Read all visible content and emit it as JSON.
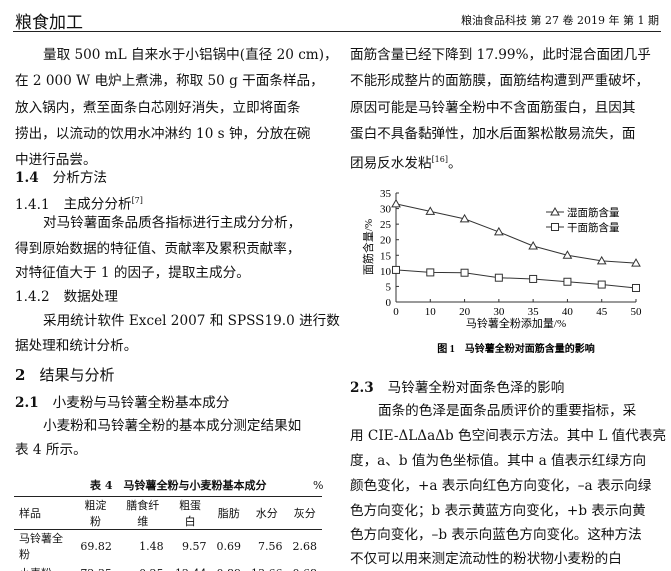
{
  "header": {
    "section": "粮食加工",
    "journal": "粮油食品科技 第 27 卷 2019 年 第 1 期"
  },
  "left": {
    "p1": [
      "量取 500 mL 自来水于小铝锅中(直径 20 cm)，",
      "在 2 000 W 电炉上煮沸，称取 50 g 干面条样品，",
      "放入锅内，煮至面条白芯刚好消失，立即将面条",
      "捞出，以流动的饮用水冲淋约 10 s 钟，分放在碗",
      "中进行品尝。"
    ],
    "h14": {
      "num": "1.4",
      "title": "分析方法"
    },
    "h141": {
      "num": "1.4.1",
      "title": "主成分分析",
      "ref": "[7]"
    },
    "p2": [
      "对马铃薯面条品质各指标进行主成分分析，",
      "得到原始数据的特征值、贡献率及累积贡献率，",
      "对特征值大于 1 的因子，提取主成分。"
    ],
    "h142": {
      "num": "1.4.2",
      "title": "数据处理"
    },
    "p3": [
      "采用统计软件 Excel 2007 和 SPSS19.0 进行数",
      "据处理和统计分析。"
    ],
    "h2": {
      "num": "2",
      "title": "结果与分析"
    },
    "h21": {
      "num": "2.1",
      "title": "小麦粉与马铃薯全粉基本成分"
    },
    "p4": [
      "小麦粉和马铃薯全粉的基本成分测定结果如",
      "表 4 所示。"
    ],
    "table": {
      "caption": "表 4　马铃薯全粉与小麦粉基本成分",
      "unit": "%",
      "headers": [
        "样品",
        "粗淀粉",
        "膳食纤维",
        "粗蛋白",
        "脂肪",
        "水分",
        "灰分"
      ],
      "rows": [
        [
          "马铃薯全粉",
          "69.82",
          "1.48",
          "9.57",
          "0.69",
          "7.56",
          "2.68"
        ],
        [
          "小麦粉",
          "72.35",
          "0.25",
          "12.44",
          "0.89",
          "13.66",
          "0.68"
        ]
      ]
    }
  },
  "right": {
    "p1": [
      "面筋含量已经下降到 17.99%，此时混合面团几乎",
      "不能形成整片的面筋膜，面筋结构遭到严重破坏，",
      "原因可能是马铃薯全粉中不含面筋蛋白，且因其",
      "蛋白不具备黏弹性，加水后面絮松散易流失，面",
      "团易反水发粘"
    ],
    "p1_ref": "[16]",
    "p1_end": "。",
    "h23": {
      "num": "2.3",
      "title": "马铃薯全粉对面条色泽的影响"
    },
    "p2": [
      "面条的色泽是面条品质评价的重要指标，采",
      "用 CIE-ΔLΔaΔb 色空间表示方法。其中 L 值代表亮",
      "度，a、b 值为色坐标值。其中 a 值表示红绿方向",
      "颜色变化，+a 表示向红色方向变化，–a 表示向绿",
      "色方向变化；b 表示黄蓝方向变化，+b 表示向黄",
      "色方向变化，–b 表示向蓝色方向变化。这种方法",
      "不仅可以用来测定流动性的粉状物小麦粉的白"
    ]
  },
  "chart_data": {
    "type": "line",
    "caption": "图 1　马铃薯全粉对面筋含量的影响",
    "xlabel": "马铃薯全粉添加量/%",
    "ylabel": "面筋含量/%",
    "categories": [
      "0",
      "10",
      "20",
      "30",
      "35",
      "40",
      "45",
      "50"
    ],
    "ylim": [
      0,
      35
    ],
    "yticks": [
      0,
      5,
      10,
      15,
      20,
      25,
      30,
      35
    ],
    "grid": false,
    "legend": "top-right",
    "series": [
      {
        "name": "湿面筋含量",
        "marker": "triangle",
        "values": [
          31.5,
          29.1,
          26.7,
          22.5,
          17.99,
          15.0,
          13.2,
          12.5
        ]
      },
      {
        "name": "干面筋含量",
        "marker": "square",
        "values": [
          10.3,
          9.5,
          9.4,
          7.8,
          7.4,
          6.5,
          5.6,
          4.5
        ]
      }
    ]
  }
}
